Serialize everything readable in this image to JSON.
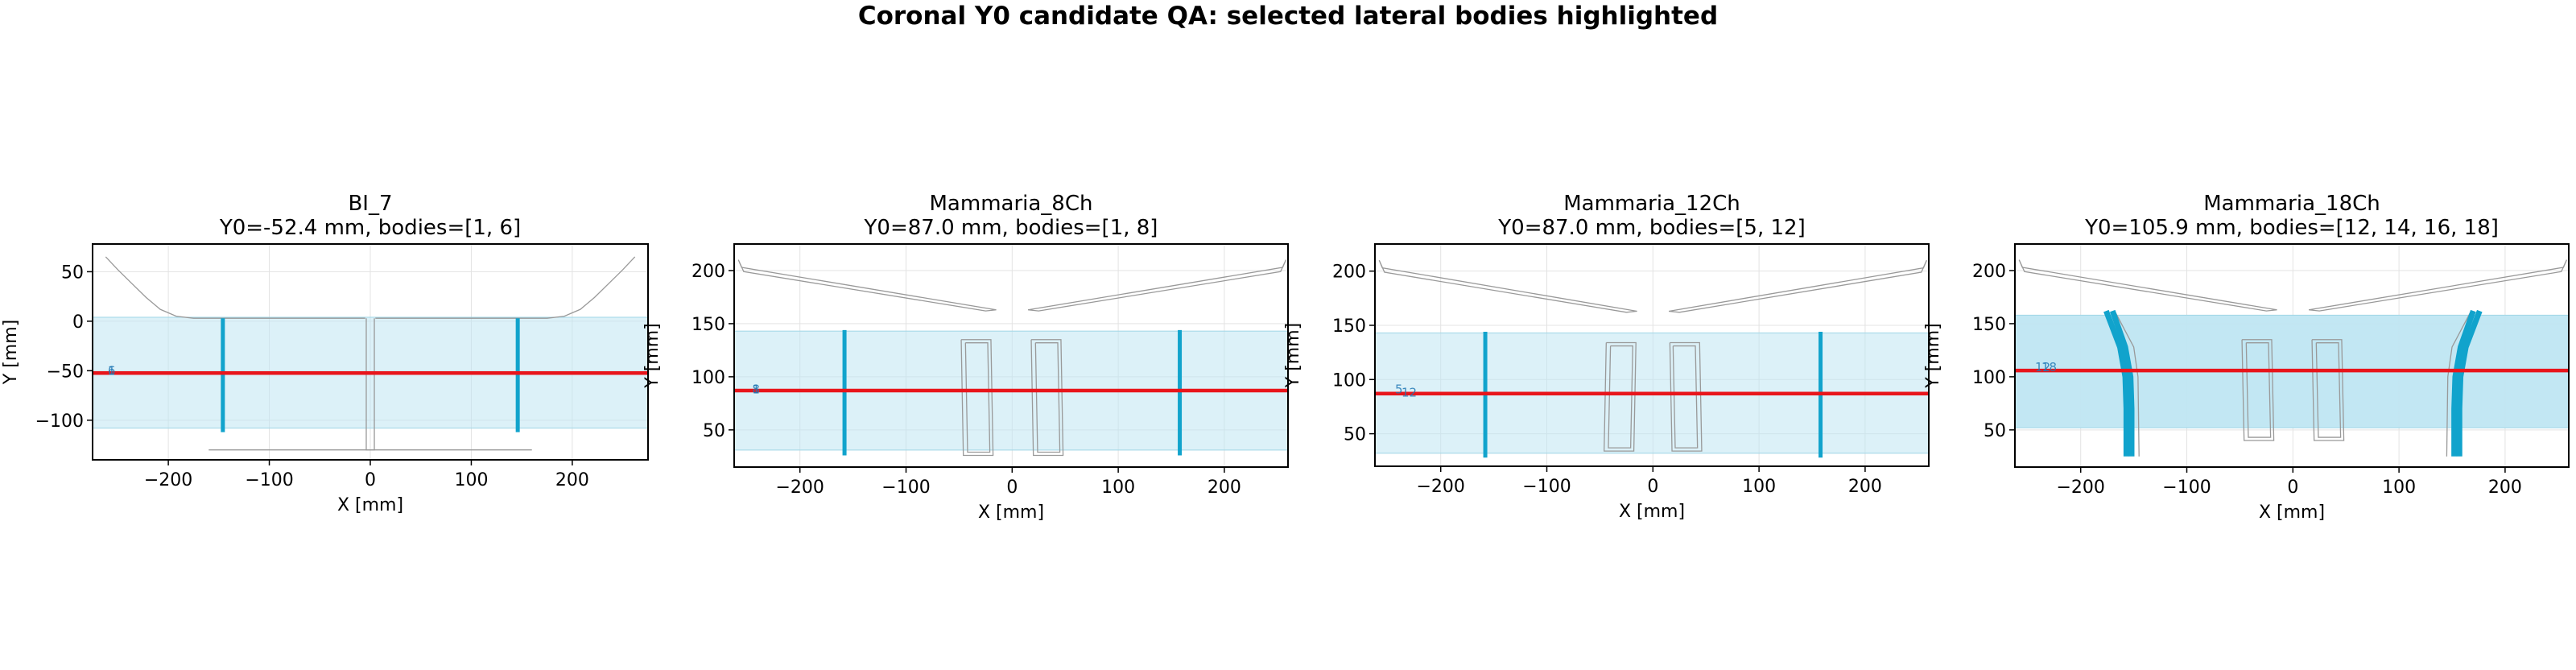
{
  "figure": {
    "suptitle": "Coronal Y0 candidate QA: selected lateral bodies highlighted",
    "colors": {
      "band_fill": "#bfe6f2",
      "body_highlight": "#11a3cc",
      "y0_line": "#e8151b",
      "outline": "#999999",
      "grid": "#e3e3e3",
      "marker_text": "#1f77b4"
    }
  },
  "chart_data": [
    {
      "type": "line",
      "title_line1": "BI_7",
      "title_line2": "Y0=-52.4 mm, bodies=[1, 6]",
      "xlabel": "X [mm]",
      "ylabel": "Y [mm]",
      "xlim": [
        -275,
        275
      ],
      "ylim": [
        -140,
        78
      ],
      "xticks": [
        -200,
        -100,
        0,
        100,
        200
      ],
      "yticks": [
        -100,
        -50,
        0,
        50
      ],
      "grid": true,
      "y0": -52.4,
      "band": [
        -108,
        4
      ],
      "band_opacity": 0.55,
      "markers": [
        {
          "x": -260,
          "y": -50,
          "label": "6"
        },
        {
          "x": -260,
          "y": -50,
          "label": "1"
        }
      ],
      "highlighted": [
        {
          "body": 1,
          "points": [
            [
              -146,
              3
            ],
            [
              -146,
              -112
            ]
          ]
        },
        {
          "body": 6,
          "points": [
            [
              146,
              3
            ],
            [
              146,
              -112
            ]
          ]
        }
      ],
      "outlines": [
        [
          [
            -262,
            65
          ],
          [
            -250,
            52
          ],
          [
            -236,
            38
          ],
          [
            -222,
            24
          ],
          [
            -208,
            12
          ],
          [
            -192,
            5
          ],
          [
            -175,
            3
          ],
          [
            -5,
            3
          ]
        ],
        [
          [
            262,
            65
          ],
          [
            250,
            52
          ],
          [
            236,
            38
          ],
          [
            222,
            24
          ],
          [
            208,
            12
          ],
          [
            192,
            5
          ],
          [
            175,
            3
          ],
          [
            5,
            3
          ]
        ],
        [
          [
            -4,
            3
          ],
          [
            -4,
            -130
          ],
          [
            4,
            -130
          ],
          [
            4,
            3
          ]
        ],
        [
          [
            -160,
            -130
          ],
          [
            160,
            -130
          ]
        ]
      ]
    },
    {
      "type": "line",
      "title_line1": "Mammaria_8Ch",
      "title_line2": "Y0=87.0 mm, bodies=[1, 8]",
      "xlabel": "X [mm]",
      "ylabel": "Y [mm]",
      "xlim": [
        -262,
        260
      ],
      "ylim": [
        15,
        225
      ],
      "xticks": [
        -200,
        -100,
        0,
        100,
        200
      ],
      "yticks": [
        50,
        100,
        150,
        200
      ],
      "grid": true,
      "y0": 87.0,
      "band": [
        31,
        143
      ],
      "band_opacity": 0.55,
      "markers": [
        {
          "x": -245,
          "y": 88,
          "label": "8"
        },
        {
          "x": -245,
          "y": 88,
          "label": "1"
        }
      ],
      "highlighted": [
        {
          "body": 1,
          "points": [
            [
              -158,
              144
            ],
            [
              -158,
              26
            ]
          ]
        },
        {
          "body": 8,
          "points": [
            [
              158,
              144
            ],
            [
              158,
              26
            ]
          ]
        }
      ],
      "outlines": [
        [
          [
            -258,
            210
          ],
          [
            -255,
            203
          ],
          [
            -15,
            163
          ],
          [
            -25,
            162
          ],
          [
            -253,
            199
          ],
          [
            -258,
            210
          ]
        ],
        [
          [
            258,
            210
          ],
          [
            255,
            203
          ],
          [
            15,
            163
          ],
          [
            25,
            162
          ],
          [
            253,
            199
          ],
          [
            258,
            210
          ]
        ],
        [
          [
            -48,
            135
          ],
          [
            -20,
            135
          ],
          [
            -18,
            26
          ],
          [
            -46,
            26
          ],
          [
            -48,
            135
          ]
        ],
        [
          [
            -44,
            132
          ],
          [
            -23,
            132
          ],
          [
            -21,
            29
          ],
          [
            -42,
            29
          ],
          [
            -44,
            132
          ]
        ],
        [
          [
            18,
            135
          ],
          [
            46,
            135
          ],
          [
            48,
            26
          ],
          [
            20,
            26
          ],
          [
            18,
            135
          ]
        ],
        [
          [
            22,
            132
          ],
          [
            43,
            132
          ],
          [
            45,
            29
          ],
          [
            24,
            29
          ],
          [
            22,
            132
          ]
        ]
      ]
    },
    {
      "type": "line",
      "title_line1": "Mammaria_12Ch",
      "title_line2": "Y0=87.0 mm, bodies=[5, 12]",
      "xlabel": "X [mm]",
      "ylabel": "Y [mm]",
      "xlim": [
        -262,
        260
      ],
      "ylim": [
        20,
        225
      ],
      "xticks": [
        -200,
        -100,
        0,
        100,
        200
      ],
      "yticks": [
        50,
        100,
        150,
        200
      ],
      "grid": true,
      "y0": 87.0,
      "band": [
        32,
        143
      ],
      "band_opacity": 0.55,
      "markers": [
        {
          "x": -243,
          "y": 91,
          "label": "5"
        },
        {
          "x": -237,
          "y": 88,
          "label": "12"
        }
      ],
      "highlighted": [
        {
          "body": 5,
          "points": [
            [
              -158,
              144
            ],
            [
              -158,
              28
            ]
          ]
        },
        {
          "body": 12,
          "points": [
            [
              158,
              144
            ],
            [
              158,
              28
            ]
          ]
        }
      ],
      "outlines": [
        [
          [
            -258,
            210
          ],
          [
            -255,
            203
          ],
          [
            -15,
            163
          ],
          [
            -25,
            162
          ],
          [
            -253,
            199
          ],
          [
            -258,
            210
          ]
        ],
        [
          [
            258,
            210
          ],
          [
            255,
            203
          ],
          [
            15,
            163
          ],
          [
            25,
            162
          ],
          [
            253,
            199
          ],
          [
            258,
            210
          ]
        ],
        [
          [
            -44,
            134
          ],
          [
            -16,
            134
          ],
          [
            -18,
            34
          ],
          [
            -46,
            34
          ],
          [
            -44,
            134
          ]
        ],
        [
          [
            -40,
            131
          ],
          [
            -19,
            131
          ],
          [
            -21,
            37
          ],
          [
            -42,
            37
          ],
          [
            -40,
            131
          ]
        ],
        [
          [
            16,
            134
          ],
          [
            44,
            134
          ],
          [
            46,
            34
          ],
          [
            18,
            34
          ],
          [
            16,
            134
          ]
        ],
        [
          [
            19,
            131
          ],
          [
            40,
            131
          ],
          [
            42,
            37
          ],
          [
            21,
            37
          ],
          [
            19,
            131
          ]
        ]
      ]
    },
    {
      "type": "line",
      "title_line1": "Mammaria_18Ch",
      "title_line2": "Y0=105.9 mm, bodies=[12, 14, 16, 18]",
      "xlabel": "X [mm]",
      "ylabel": "Y [mm]",
      "xlim": [
        -262,
        260
      ],
      "ylim": [
        15,
        225
      ],
      "xticks": [
        -200,
        -100,
        0,
        100,
        200
      ],
      "yticks": [
        50,
        100,
        150,
        200
      ],
      "grid": true,
      "y0": 105.9,
      "band": [
        52,
        158
      ],
      "band_opacity": 0.95,
      "markers": [
        {
          "x": -243,
          "y": 109,
          "label": "12"
        },
        {
          "x": -237,
          "y": 109,
          "label": "18"
        }
      ],
      "highlighted": [
        {
          "body": 12,
          "points": [
            [
              -176,
              162
            ],
            [
              -163,
              128
            ],
            [
              -158,
              100
            ],
            [
              -157,
              70
            ],
            [
              -157,
              25
            ]
          ]
        },
        {
          "body": 14,
          "points": [
            [
              -170,
              162
            ],
            [
              -158,
              128
            ],
            [
              -153,
              100
            ],
            [
              -152,
              70
            ],
            [
              -152,
              25
            ]
          ]
        },
        {
          "body": 16,
          "points": [
            [
              170,
              162
            ],
            [
              158,
              128
            ],
            [
              153,
              100
            ],
            [
              152,
              70
            ],
            [
              152,
              25
            ]
          ]
        },
        {
          "body": 18,
          "points": [
            [
              176,
              162
            ],
            [
              163,
              128
            ],
            [
              158,
              100
            ],
            [
              157,
              70
            ],
            [
              157,
              25
            ]
          ]
        }
      ],
      "outlines": [
        [
          [
            -258,
            210
          ],
          [
            -255,
            203
          ],
          [
            -15,
            163
          ],
          [
            -25,
            162
          ],
          [
            -253,
            199
          ],
          [
            -258,
            210
          ]
        ],
        [
          [
            258,
            210
          ],
          [
            255,
            203
          ],
          [
            15,
            163
          ],
          [
            25,
            162
          ],
          [
            253,
            199
          ],
          [
            258,
            210
          ]
        ],
        [
          [
            -168,
            162
          ],
          [
            -150,
            128
          ],
          [
            -146,
            100
          ],
          [
            -145,
            25
          ]
        ],
        [
          [
            168,
            162
          ],
          [
            150,
            128
          ],
          [
            146,
            100
          ],
          [
            145,
            25
          ]
        ],
        [
          [
            -48,
            135
          ],
          [
            -20,
            135
          ],
          [
            -18,
            40
          ],
          [
            -46,
            40
          ],
          [
            -48,
            135
          ]
        ],
        [
          [
            -44,
            132
          ],
          [
            -23,
            132
          ],
          [
            -21,
            43
          ],
          [
            -42,
            43
          ],
          [
            -44,
            132
          ]
        ],
        [
          [
            18,
            135
          ],
          [
            46,
            135
          ],
          [
            48,
            40
          ],
          [
            20,
            40
          ],
          [
            18,
            135
          ]
        ],
        [
          [
            22,
            132
          ],
          [
            43,
            132
          ],
          [
            45,
            43
          ],
          [
            24,
            43
          ],
          [
            22,
            132
          ]
        ]
      ]
    }
  ]
}
